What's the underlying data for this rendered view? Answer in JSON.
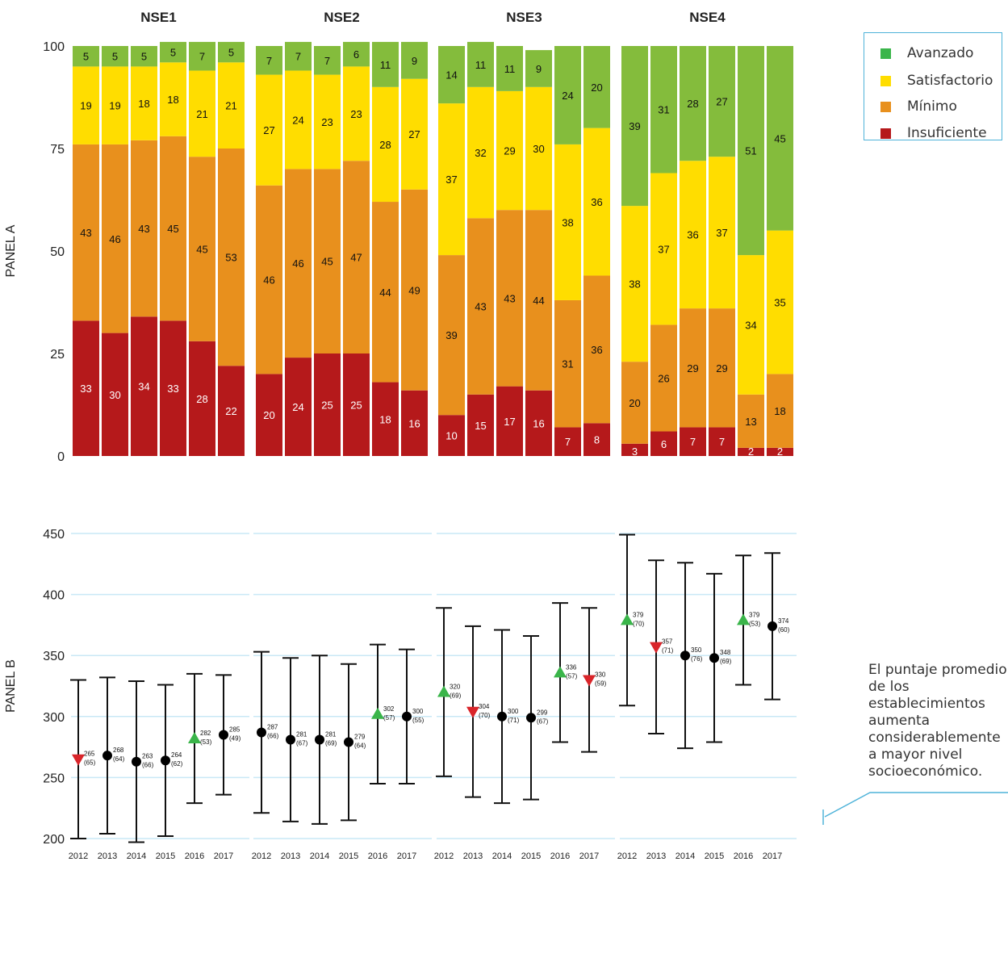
{
  "legend": [
    {
      "label": "Avanzado",
      "color": "#3ab54a"
    },
    {
      "label": "Satisfactorio",
      "color": "#ffdd00"
    },
    {
      "label": "Mínimo",
      "color": "#e8901d"
    },
    {
      "label": "Insuficiente",
      "color": "#b5191b"
    }
  ],
  "annotation": "El puntaje promedio de los establecimientos aumenta considerablemente a mayor nivel socioeconómico.",
  "chart_data": [
    {
      "type": "bar",
      "stacked": true,
      "panel_label": "PANEL A",
      "groups": [
        "NSE1",
        "NSE2",
        "NSE3",
        "NSE4"
      ],
      "categories": [
        "2012",
        "2013",
        "2014",
        "2015",
        "2016",
        "2017"
      ],
      "ylim": [
        0,
        100
      ],
      "yticks": [
        0,
        25,
        50,
        75,
        100
      ],
      "series_colors": {
        "Insuficiente": "#b5191b",
        "Mínimo": "#e8901d",
        "Satisfactorio": "#ffdd00",
        "Avanzado": "#84bc3c"
      },
      "data": {
        "NSE1": {
          "Insuficiente": [
            33,
            30,
            34,
            33,
            28,
            22
          ],
          "Mínimo": [
            43,
            46,
            43,
            45,
            45,
            53
          ],
          "Satisfactorio": [
            19,
            19,
            18,
            18,
            21,
            21
          ],
          "Avanzado": [
            5,
            5,
            5,
            5,
            7,
            5
          ]
        },
        "NSE2": {
          "Insuficiente": [
            20,
            24,
            25,
            25,
            18,
            16
          ],
          "Mínimo": [
            46,
            46,
            45,
            47,
            44,
            49
          ],
          "Satisfactorio": [
            27,
            24,
            23,
            23,
            28,
            27
          ],
          "Avanzado": [
            7,
            7,
            7,
            6,
            11,
            9
          ]
        },
        "NSE3": {
          "Insuficiente": [
            10,
            15,
            17,
            16,
            7,
            8
          ],
          "Mínimo": [
            39,
            43,
            43,
            44,
            31,
            36
          ],
          "Satisfactorio": [
            37,
            32,
            29,
            30,
            38,
            36
          ],
          "Avanzado": [
            14,
            11,
            11,
            9,
            24,
            20
          ]
        },
        "NSE4": {
          "Insuficiente": [
            3,
            6,
            7,
            7,
            2,
            2
          ],
          "Mínimo": [
            20,
            26,
            29,
            29,
            13,
            18
          ],
          "Satisfactorio": [
            38,
            37,
            36,
            37,
            34,
            35
          ],
          "Avanzado": [
            39,
            31,
            28,
            27,
            51,
            45
          ]
        }
      }
    },
    {
      "type": "errorbar",
      "panel_label": "PANEL B",
      "groups": [
        "NSE1",
        "NSE2",
        "NSE3",
        "NSE4"
      ],
      "categories": [
        "2012",
        "2013",
        "2014",
        "2015",
        "2016",
        "2017"
      ],
      "ylim": [
        200,
        450
      ],
      "yticks": [
        200,
        250,
        300,
        350,
        400,
        450
      ],
      "grid": true,
      "marker_colors": {
        "up": "#3ab54a",
        "down": "#d9252a",
        "same": "#000000"
      },
      "data": {
        "NSE1": {
          "mean": [
            265,
            268,
            263,
            264,
            282,
            285
          ],
          "sd": [
            65,
            64,
            66,
            62,
            53,
            49
          ],
          "low": [
            200,
            204,
            197,
            202,
            229,
            236
          ],
          "high": [
            330,
            332,
            329,
            326,
            335,
            334
          ],
          "marker": [
            "down",
            "same",
            "same",
            "same",
            "up",
            "same"
          ]
        },
        "NSE2": {
          "mean": [
            287,
            281,
            281,
            279,
            302,
            300
          ],
          "sd": [
            66,
            67,
            69,
            64,
            57,
            55
          ],
          "low": [
            221,
            214,
            212,
            215,
            245,
            245
          ],
          "high": [
            353,
            348,
            350,
            343,
            359,
            355
          ],
          "marker": [
            "same",
            "same",
            "same",
            "same",
            "up",
            "same"
          ]
        },
        "NSE3": {
          "mean": [
            320,
            304,
            300,
            299,
            336,
            330
          ],
          "sd": [
            69,
            70,
            71,
            67,
            57,
            59
          ],
          "low": [
            251,
            234,
            229,
            232,
            279,
            271
          ],
          "high": [
            389,
            374,
            371,
            366,
            393,
            389
          ],
          "marker": [
            "up",
            "down",
            "same",
            "same",
            "up",
            "down"
          ]
        },
        "NSE4": {
          "mean": [
            379,
            357,
            350,
            348,
            379,
            374
          ],
          "sd": [
            70,
            71,
            76,
            69,
            53,
            60
          ],
          "low": [
            309,
            286,
            274,
            279,
            326,
            314
          ],
          "high": [
            449,
            428,
            426,
            417,
            432,
            434
          ],
          "marker": [
            "up",
            "down",
            "same",
            "same",
            "up",
            "same"
          ]
        }
      }
    }
  ]
}
